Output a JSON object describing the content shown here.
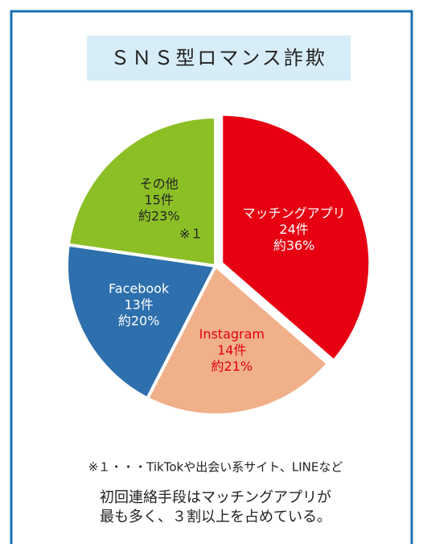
{
  "chart_data": {
    "type": "pie",
    "title": "ＳＮＳ型ロマンス詐欺",
    "categories": [
      "マッチングアプリ",
      "Instagram",
      "Facebook",
      "その他"
    ],
    "values": [
      24,
      14,
      13,
      15
    ],
    "value_labels": [
      "24件",
      "14件",
      "13件",
      "15件"
    ],
    "shares": [
      "約36%",
      "約21%",
      "約20%",
      "約23%"
    ],
    "colors": [
      "#e60012",
      "#f0b08a",
      "#2e6fad",
      "#8cbf26"
    ],
    "label_colors": [
      "#ffffff",
      "#e60012",
      "#ffffff",
      "#222222"
    ],
    "markers": [
      null,
      null,
      null,
      "※１"
    ],
    "footnote": "※１・・・TikTokや出会い系サイト、LINEなど",
    "summary": [
      "初回連絡手段はマッチングアプリが",
      "最も多く、３割以上を占めている。"
    ]
  }
}
